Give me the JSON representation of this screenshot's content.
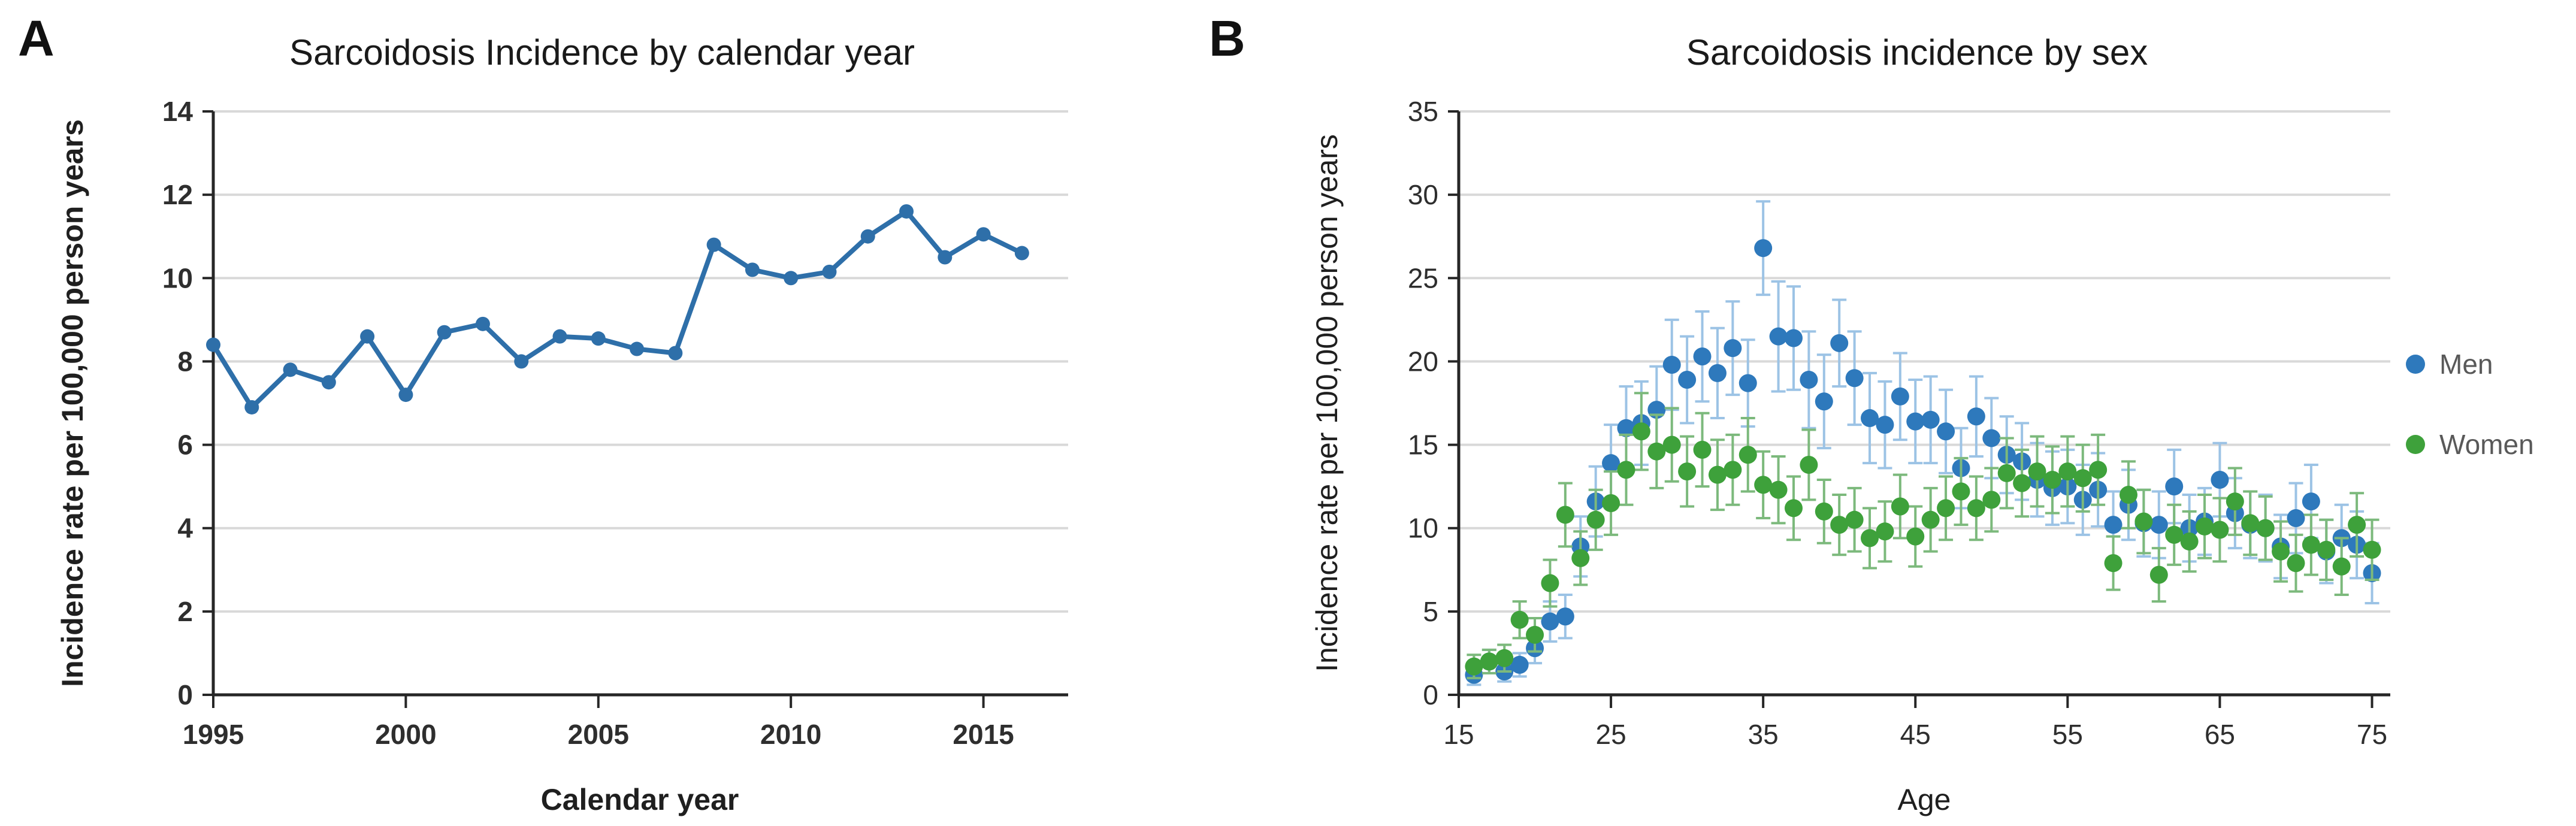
{
  "figure": {
    "panels": [
      {
        "label": "A"
      },
      {
        "label": "B"
      }
    ]
  },
  "chart_data": [
    {
      "id": "panel_a",
      "type": "line",
      "title": "Sarcoidosis Incidence by calendar year",
      "xlabel": "Calendar year",
      "ylabel": "Incidence rate per 100,000 person years",
      "xlim": [
        1995,
        2017.2
      ],
      "ylim": [
        0,
        14
      ],
      "xticks": [
        1995,
        2000,
        2005,
        2010,
        2015
      ],
      "yticks": [
        0,
        2,
        4,
        6,
        8,
        10,
        12,
        14
      ],
      "grid": "horizontal",
      "grid_color": "#D9D9D9",
      "axis_color": "#262626",
      "legend_position": "none",
      "series": [
        {
          "name": "Incidence rate",
          "color": "#2E6FA9",
          "x": [
            1995,
            1996,
            1997,
            1998,
            1999,
            2000,
            2001,
            2002,
            2003,
            2004,
            2005,
            2006,
            2007,
            2008,
            2009,
            2010,
            2011,
            2012,
            2013,
            2014,
            2015,
            2016
          ],
          "y": [
            8.4,
            6.9,
            7.8,
            7.5,
            8.6,
            7.2,
            8.7,
            8.9,
            8.0,
            8.6,
            8.55,
            8.3,
            8.2,
            10.8,
            10.2,
            10.0,
            10.15,
            11.0,
            11.6,
            10.5,
            11.05,
            10.6
          ]
        }
      ]
    },
    {
      "id": "panel_b",
      "type": "scatter",
      "title": "Sarcoidosis incidence by sex",
      "xlabel": "Age",
      "ylabel": "Incidence rate per 100,000 person years",
      "xlim": [
        15,
        76.2
      ],
      "ylim": [
        0,
        35
      ],
      "xticks": [
        15,
        25,
        35,
        45,
        55,
        65,
        75
      ],
      "yticks": [
        0,
        5,
        10,
        15,
        20,
        25,
        30,
        35
      ],
      "grid": "horizontal",
      "grid_color": "#D9D9D9",
      "axis_color": "#262626",
      "legend_position": "right",
      "series": [
        {
          "name": "Men",
          "color": "#2E79BC",
          "error_color": "#9CC3E5",
          "x": [
            16,
            17,
            18,
            19,
            20,
            21,
            22,
            23,
            24,
            25,
            26,
            27,
            28,
            29,
            30,
            31,
            32,
            33,
            34,
            35,
            36,
            37,
            38,
            39,
            40,
            41,
            42,
            43,
            44,
            45,
            46,
            47,
            48,
            49,
            50,
            51,
            52,
            53,
            54,
            55,
            56,
            57,
            58,
            59,
            60,
            61,
            62,
            63,
            64,
            65,
            66,
            67,
            68,
            69,
            70,
            71,
            72,
            73,
            74,
            75
          ],
          "y": [
            1.2,
            2.0,
            1.4,
            1.8,
            2.8,
            4.4,
            4.7,
            8.9,
            11.6,
            13.9,
            16.0,
            16.3,
            17.1,
            19.8,
            18.9,
            20.3,
            19.3,
            20.8,
            18.7,
            26.8,
            21.5,
            21.4,
            18.9,
            17.6,
            21.1,
            19.0,
            16.6,
            16.2,
            17.9,
            16.4,
            16.5,
            15.8,
            13.6,
            16.7,
            15.4,
            14.4,
            14.0,
            12.9,
            12.4,
            12.5,
            11.7,
            12.3,
            10.2,
            11.4,
            10.3,
            10.2,
            12.5,
            10.0,
            10.4,
            12.9,
            10.9,
            10.2,
            10.0,
            8.9,
            10.6,
            11.6,
            8.6,
            9.4,
            9.0,
            7.3
          ],
          "err": [
            0.6,
            0.7,
            0.6,
            0.7,
            0.9,
            1.2,
            1.3,
            1.8,
            2.1,
            2.3,
            2.5,
            2.5,
            2.6,
            2.7,
            2.6,
            2.7,
            2.7,
            2.8,
            2.6,
            2.8,
            3.3,
            3.1,
            2.9,
            2.8,
            2.6,
            2.8,
            2.7,
            2.6,
            2.6,
            2.5,
            2.6,
            2.5,
            2.4,
            2.4,
            2.4,
            2.3,
            2.3,
            2.2,
            2.2,
            2.2,
            2.1,
            2.2,
            2.0,
            2.1,
            2.0,
            2.0,
            2.2,
            2.0,
            2.0,
            2.2,
            2.1,
            2.0,
            2.0,
            1.9,
            2.1,
            2.2,
            1.9,
            2.0,
            2.0,
            1.8
          ]
        },
        {
          "name": "Women",
          "color": "#3EA13B",
          "error_color": "#7CB97C",
          "x": [
            16,
            17,
            18,
            19,
            20,
            21,
            22,
            23,
            24,
            25,
            26,
            27,
            28,
            29,
            30,
            31,
            32,
            33,
            34,
            35,
            36,
            37,
            38,
            39,
            40,
            41,
            42,
            43,
            44,
            45,
            46,
            47,
            48,
            49,
            50,
            51,
            52,
            53,
            54,
            55,
            56,
            57,
            58,
            59,
            60,
            61,
            62,
            63,
            64,
            65,
            66,
            67,
            68,
            69,
            70,
            71,
            72,
            73,
            74,
            75
          ],
          "y": [
            1.7,
            2.0,
            2.2,
            4.5,
            3.6,
            6.7,
            10.8,
            8.2,
            10.5,
            11.5,
            13.5,
            15.8,
            14.6,
            15.0,
            13.4,
            14.7,
            13.2,
            13.5,
            14.4,
            12.6,
            12.3,
            11.2,
            13.8,
            11.0,
            10.2,
            10.5,
            9.4,
            9.8,
            11.3,
            9.5,
            10.5,
            11.2,
            12.2,
            11.2,
            11.7,
            13.3,
            12.7,
            13.4,
            12.9,
            13.4,
            13.0,
            13.5,
            7.9,
            12.0,
            10.4,
            7.2,
            9.6,
            9.2,
            10.1,
            9.9,
            11.6,
            10.3,
            10.0,
            8.6,
            7.9,
            9.0,
            8.7,
            7.7,
            10.2,
            8.7
          ],
          "err": [
            0.7,
            0.7,
            0.8,
            1.1,
            1.0,
            1.4,
            1.9,
            1.6,
            1.8,
            1.9,
            2.1,
            2.3,
            2.2,
            2.2,
            2.1,
            2.2,
            2.1,
            2.1,
            2.2,
            2.0,
            2.0,
            1.9,
            2.1,
            1.9,
            1.8,
            1.9,
            1.8,
            1.8,
            1.9,
            1.8,
            1.9,
            1.9,
            2.0,
            1.9,
            1.9,
            2.1,
            2.0,
            2.1,
            2.0,
            2.1,
            2.0,
            2.1,
            1.6,
            2.0,
            1.9,
            1.6,
            1.8,
            1.8,
            1.9,
            1.9,
            2.0,
            1.9,
            1.9,
            1.8,
            1.7,
            1.8,
            1.8,
            1.7,
            1.9,
            1.8
          ]
        }
      ]
    }
  ]
}
